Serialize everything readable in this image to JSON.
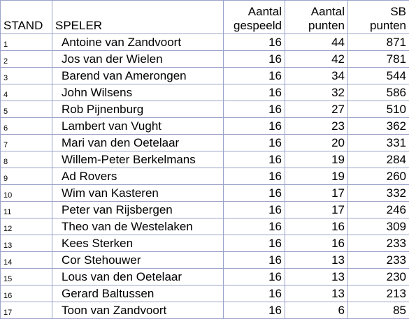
{
  "table": {
    "headers": {
      "stand": "STAND",
      "speler": "SPELER",
      "gespeeld": [
        "Aantal",
        "gespeeld"
      ],
      "punten": [
        "Aantal",
        "punten"
      ],
      "sb": [
        "SB",
        "punten"
      ]
    },
    "rows": [
      {
        "stand": "1",
        "speler": "Antoine van Zandvoort",
        "gespeeld": "16",
        "punten": "44",
        "sb": "871"
      },
      {
        "stand": "2",
        "speler": "Jos van der Wielen",
        "gespeeld": "16",
        "punten": "42",
        "sb": "781"
      },
      {
        "stand": "3",
        "speler": "Barend van Amerongen",
        "gespeeld": "16",
        "punten": "34",
        "sb": "544"
      },
      {
        "stand": "4",
        "speler": "John Wilsens",
        "gespeeld": "16",
        "punten": "32",
        "sb": "586"
      },
      {
        "stand": "5",
        "speler": "Rob Pijnenburg",
        "gespeeld": "16",
        "punten": "27",
        "sb": "510"
      },
      {
        "stand": "6",
        "speler": "Lambert van Vught",
        "gespeeld": "16",
        "punten": "23",
        "sb": "362"
      },
      {
        "stand": "7",
        "speler": "Mari van den Oetelaar",
        "gespeeld": "16",
        "punten": "20",
        "sb": "331"
      },
      {
        "stand": "8",
        "speler": "Willem-Peter Berkelmans",
        "gespeeld": "16",
        "punten": "19",
        "sb": "284"
      },
      {
        "stand": "9",
        "speler": "Ad Rovers",
        "gespeeld": "16",
        "punten": "19",
        "sb": "260"
      },
      {
        "stand": "10",
        "speler": "Wim van Kasteren",
        "gespeeld": "16",
        "punten": "17",
        "sb": "332"
      },
      {
        "stand": "11",
        "speler": "Peter van Rijsbergen",
        "gespeeld": "16",
        "punten": "17",
        "sb": "246"
      },
      {
        "stand": "12",
        "speler": "Theo van de Westelaken",
        "gespeeld": "16",
        "punten": "16",
        "sb": "309"
      },
      {
        "stand": "13",
        "speler": "Kees Sterken",
        "gespeeld": "16",
        "punten": "16",
        "sb": "233"
      },
      {
        "stand": "14",
        "speler": "Cor Stehouwer",
        "gespeeld": "16",
        "punten": "13",
        "sb": "233"
      },
      {
        "stand": "15",
        "speler": "Lous van den Oetelaar",
        "gespeeld": "16",
        "punten": "13",
        "sb": "230"
      },
      {
        "stand": "16",
        "speler": "Gerard Baltussen",
        "gespeeld": "16",
        "punten": "13",
        "sb": "213"
      },
      {
        "stand": "17",
        "speler": "Toon van Zandvoort",
        "gespeeld": "16",
        "punten": "6",
        "sb": "85"
      }
    ]
  },
  "colors": {
    "grid": "#9aa2c9",
    "text": "#000000",
    "background": "#ffffff"
  }
}
